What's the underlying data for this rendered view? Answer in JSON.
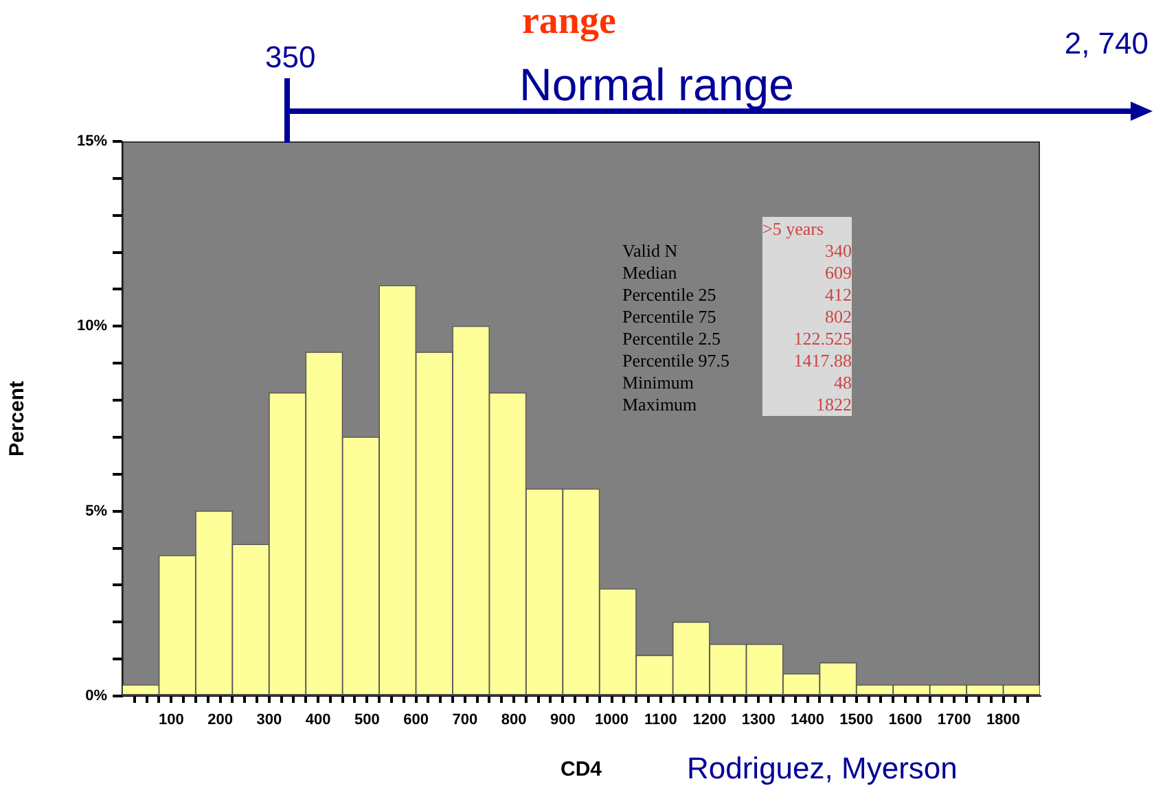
{
  "chart_data": {
    "type": "histogram",
    "xlabel": "CD4",
    "ylabel": "Percent",
    "bins": [
      0,
      75,
      150,
      225,
      300,
      375,
      450,
      525,
      600,
      675,
      750,
      825,
      900,
      975,
      1050,
      1125,
      1200,
      1275,
      1350,
      1425,
      1500,
      1575,
      1650,
      1725,
      1800,
      1875
    ],
    "values": [
      0.3,
      3.8,
      5.0,
      4.1,
      8.2,
      9.3,
      7.0,
      11.1,
      9.3,
      10.0,
      8.2,
      5.6,
      5.6,
      2.9,
      1.1,
      2.0,
      1.4,
      1.4,
      0.6,
      0.9,
      0.3,
      0.3,
      0.3,
      0.3,
      0.3
    ],
    "color": "#ffff99",
    "xlim": [
      0,
      1875
    ],
    "xticks": [
      {
        "value": 25,
        "label": null
      },
      {
        "value": 50,
        "label": null
      },
      {
        "value": 75,
        "label": null
      },
      100,
      {
        "value": 125,
        "label": null
      },
      {
        "value": 150,
        "label": null
      },
      {
        "value": 175,
        "label": null
      },
      200,
      {
        "value": 225,
        "label": null
      },
      {
        "value": 250,
        "label": null
      },
      {
        "value": 275,
        "label": null
      },
      300,
      {
        "value": 325,
        "label": null
      },
      {
        "value": 350,
        "label": null
      },
      {
        "value": 375,
        "label": null
      },
      400,
      {
        "value": 425,
        "label": null
      },
      {
        "value": 450,
        "label": null
      },
      {
        "value": 475,
        "label": null
      },
      500,
      {
        "value": 525,
        "label": null
      },
      {
        "value": 550,
        "label": null
      },
      {
        "value": 575,
        "label": null
      },
      600,
      {
        "value": 625,
        "label": null
      },
      {
        "value": 650,
        "label": null
      },
      {
        "value": 675,
        "label": null
      },
      700,
      {
        "value": 725,
        "label": null
      },
      {
        "value": 750,
        "label": null
      },
      {
        "value": 775,
        "label": null
      },
      800,
      {
        "value": 825,
        "label": null
      },
      {
        "value": 850,
        "label": null
      },
      {
        "value": 875,
        "label": null
      },
      900,
      {
        "value": 925,
        "label": null
      },
      {
        "value": 950,
        "label": null
      },
      {
        "value": 975,
        "label": null
      },
      1000,
      {
        "value": 1025,
        "label": null
      },
      {
        "value": 1050,
        "label": null
      },
      {
        "value": 1075,
        "label": null
      },
      1100,
      {
        "value": 1125,
        "label": null
      },
      {
        "value": 1150,
        "label": null
      },
      {
        "value": 1175,
        "label": null
      },
      1200,
      {
        "value": 1225,
        "label": null
      },
      {
        "value": 1250,
        "label": null
      },
      {
        "value": 1275,
        "label": null
      },
      1300,
      {
        "value": 1325,
        "label": null
      },
      {
        "value": 1350,
        "label": null
      },
      {
        "value": 1375,
        "label": null
      },
      1400,
      {
        "value": 1425,
        "label": null
      },
      {
        "value": 1450,
        "label": null
      },
      {
        "value": 1475,
        "label": null
      },
      1500,
      {
        "value": 1525,
        "label": null
      },
      {
        "value": 1550,
        "label": null
      },
      {
        "value": 1575,
        "label": null
      },
      1600,
      {
        "value": 1625,
        "label": null
      },
      {
        "value": 1650,
        "label": null
      },
      {
        "value": 1675,
        "label": null
      },
      1700,
      {
        "value": 1725,
        "label": null
      },
      {
        "value": 1750,
        "label": null
      },
      {
        "value": 1775,
        "label": null
      },
      1800,
      {
        "value": 1825,
        "label": null
      },
      {
        "value": 1850,
        "label": null
      }
    ],
    "ylim": [
      0,
      15
    ],
    "yticks": [
      {
        "value": 0,
        "label": "0%"
      },
      {
        "value": 1,
        "label": null
      },
      {
        "value": 2,
        "label": null
      },
      {
        "value": 3,
        "label": null
      },
      {
        "value": 4,
        "label": null
      },
      {
        "value": 5,
        "label": "5%"
      },
      {
        "value": 6,
        "label": null
      },
      {
        "value": 7,
        "label": null
      },
      {
        "value": 8,
        "label": null
      },
      {
        "value": 9,
        "label": null
      },
      {
        "value": 10,
        "label": "10%"
      },
      {
        "value": 11,
        "label": null
      },
      {
        "value": 12,
        "label": null
      },
      {
        "value": 13,
        "label": null
      },
      {
        "value": 14,
        "label": null
      },
      {
        "value": 15,
        "label": "15%"
      }
    ],
    "grid": false,
    "legend": false,
    "annotations": [
      "range",
      "Normal range",
      "350",
      "2, 740",
      ">5 years",
      "Valid N",
      "340",
      "Median",
      "609",
      "Percentile 25",
      "412",
      "Percentile 75",
      "802",
      "Percentile 2.5",
      "122.525",
      "Percentile 97.5",
      "1417.88",
      "Minimum",
      "48",
      "Maximum",
      "1822",
      "Rodriguez, Myerson"
    ]
  }
}
